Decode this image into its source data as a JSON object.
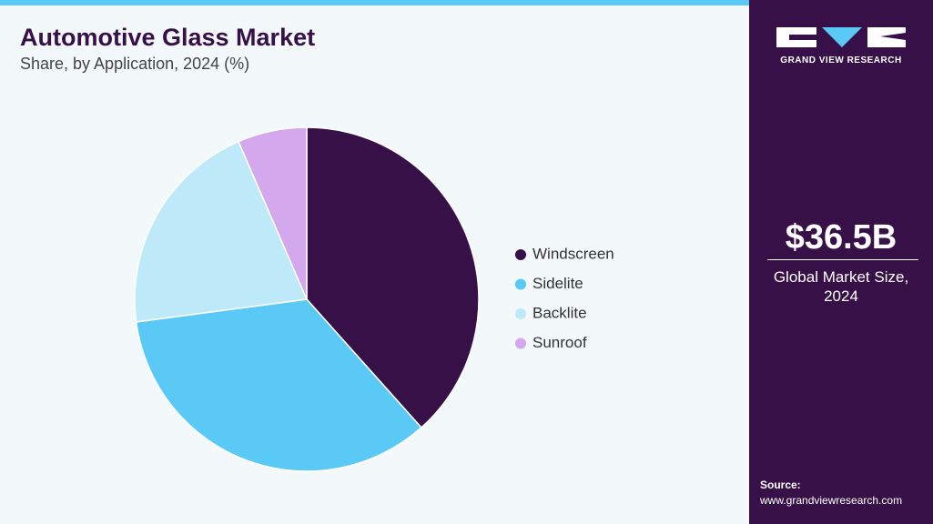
{
  "chart_data": {
    "type": "pie",
    "title": "Automotive Glass Market",
    "subtitle": "Share, by Application, 2024 (%)",
    "categories": [
      "Windscreen",
      "Sidelite",
      "Backlite",
      "Sunroof"
    ],
    "values": [
      38.4,
      34.5,
      20.6,
      6.5
    ],
    "colors": [
      "#371047",
      "#5bc9f5",
      "#bde9f8",
      "#d4a8ec"
    ]
  },
  "sidebar": {
    "brand": "GRAND VIEW RESEARCH",
    "market_size": "$36.5B",
    "market_label": "Global Market Size, 2024",
    "source_label": "Source:",
    "source_url": "www.grandviewresearch.com"
  }
}
